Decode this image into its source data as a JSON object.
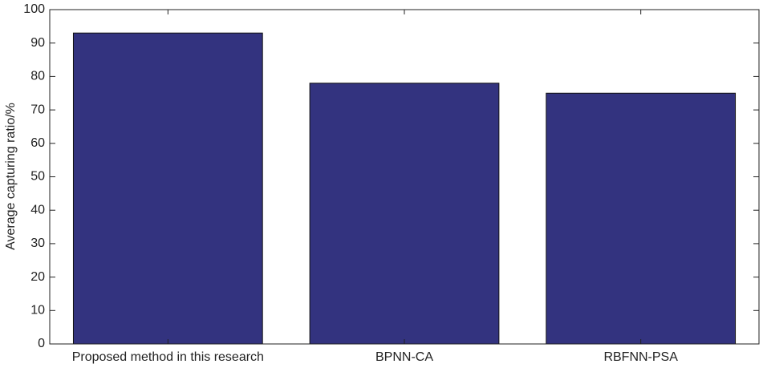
{
  "chart_data": {
    "type": "bar",
    "y_label": "Average capturing ratio/%",
    "categories": [
      "Proposed method in this research",
      "BPNN-CA",
      "RBFNN-PSA"
    ],
    "values": [
      93,
      78,
      75
    ],
    "color": "#33337f",
    "ylim": [
      0,
      100
    ],
    "yticks": [
      0,
      10,
      20,
      30,
      40,
      50,
      60,
      70,
      80,
      90,
      100
    ],
    "grid": false
  }
}
